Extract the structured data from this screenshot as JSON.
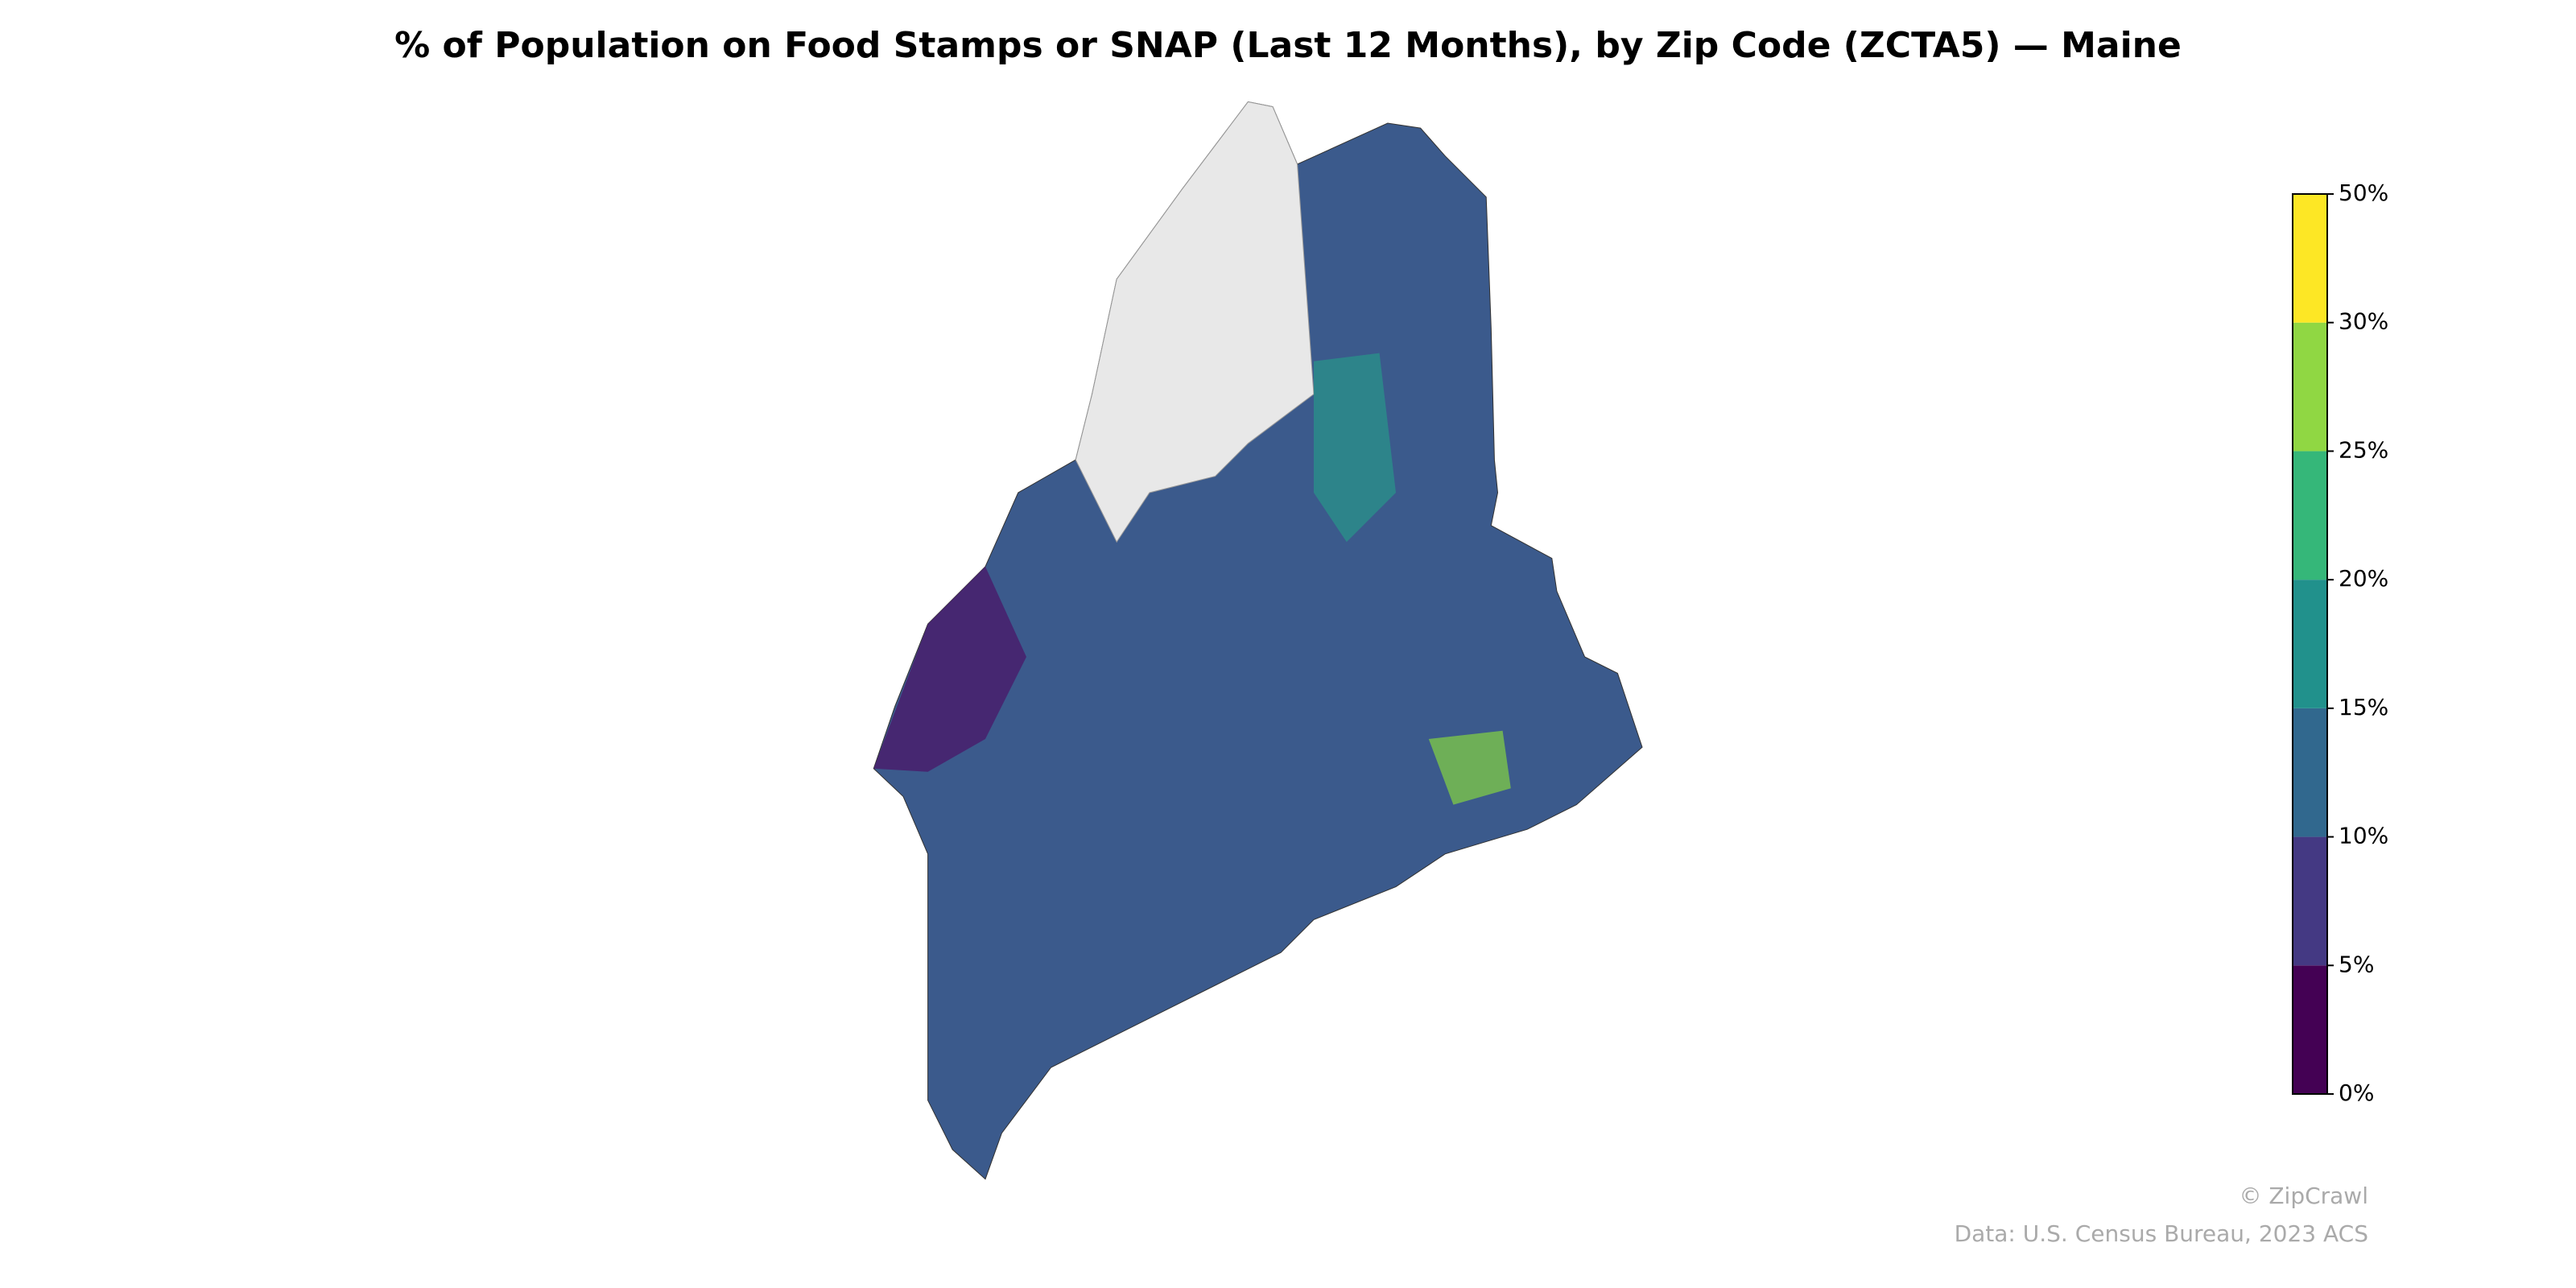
{
  "title": "% of Population on Food Stamps or SNAP (Last 12 Months), by Zip Code (ZCTA5) — Maine",
  "colorbar": {
    "ticks": [
      {
        "value": 0,
        "label": "0%"
      },
      {
        "value": 5,
        "label": "5%"
      },
      {
        "value": 10,
        "label": "10%"
      },
      {
        "value": 15,
        "label": "15%"
      },
      {
        "value": 20,
        "label": "20%"
      },
      {
        "value": 25,
        "label": "25%"
      },
      {
        "value": 30,
        "label": "30%"
      },
      {
        "value": 50,
        "label": "50%"
      }
    ],
    "colors": [
      "#440154",
      "#443983",
      "#31688e",
      "#21918c",
      "#35b779",
      "#90d743",
      "#fde725"
    ]
  },
  "credits": [
    "© ZipCrawl",
    "Data: U.S. Census Bureau, 2023 ACS"
  ]
}
